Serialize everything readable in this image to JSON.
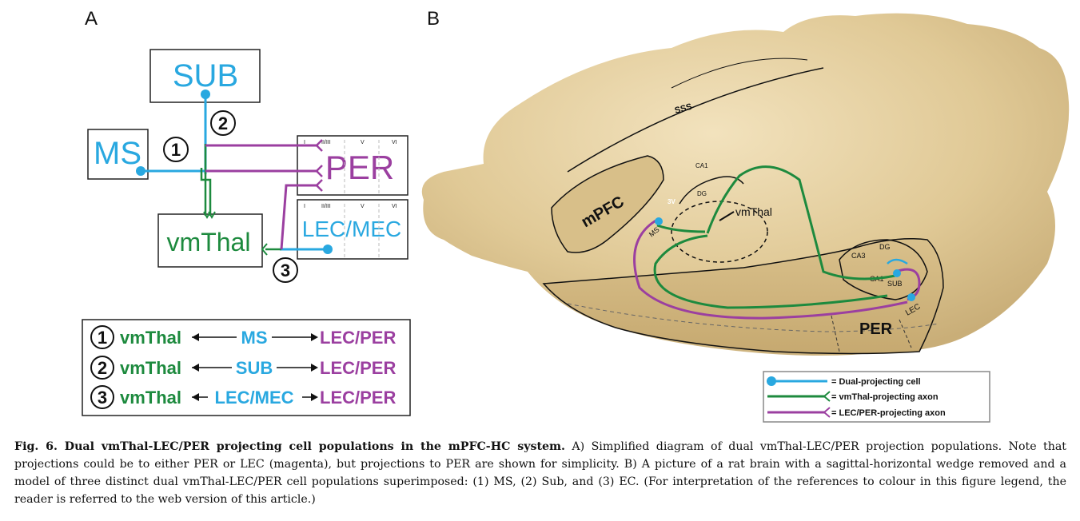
{
  "panel_a": {
    "letter": "A",
    "boxes": {
      "sub": "SUB",
      "ms": "MS",
      "per": "PER",
      "lec_mec": "LEC/MEC",
      "vmthal": "vmThal"
    },
    "numbers": [
      "1",
      "2",
      "3"
    ],
    "layers_top": [
      "I",
      "II/III",
      "V",
      "VI"
    ],
    "layers_bottom": [
      "I",
      "II/III",
      "V",
      "VI"
    ],
    "legend_rows": [
      {
        "num": "1",
        "left": "vmThal",
        "mid": "MS",
        "right": "LEC/PER"
      },
      {
        "num": "2",
        "left": "vmThal",
        "mid": "SUB",
        "right": "LEC/PER"
      },
      {
        "num": "3",
        "left": "vmThal",
        "mid": "LEC/MEC",
        "right": "LEC/PER"
      }
    ]
  },
  "panel_b": {
    "letter": "B",
    "labels": {
      "sss": "SSS",
      "mpfc": "mPFC",
      "ca1_top": "CA1",
      "three_v": "3V",
      "dg_top": "DG",
      "vmthal": "vmThal",
      "ms": "MS",
      "ca3": "CA3",
      "dg": "DG",
      "ca1": "CA1",
      "sub": "SUB",
      "per": "PER",
      "lec": "LEC"
    },
    "legend": [
      "= Dual-projecting cell",
      "= vmThal-projecting axon",
      "= LEC/PER-projecting axon"
    ]
  },
  "colors": {
    "blue": "#29a8e0",
    "green": "#1d8a3e",
    "magenta": "#9b3fa0",
    "brain": "#e3cfa0"
  },
  "caption": {
    "bold": "Fig. 6.  Dual vmThal-LEC/PER projecting cell populations in the mPFC-HC system.",
    "text": " A) Simplified diagram of dual vmThal-LEC/PER projection populations. Note that projections could be to either PER or LEC (magenta), but projections to PER are shown for simplicity. B) A picture of a rat brain with a sagittal-horizontal wedge removed and a model of three distinct dual vmThal-LEC/PER cell populations superimposed: (1) MS, (2) Sub, and (3) EC. (For interpretation of the references to colour in this figure legend, the reader is referred to the web version of this article.)"
  }
}
